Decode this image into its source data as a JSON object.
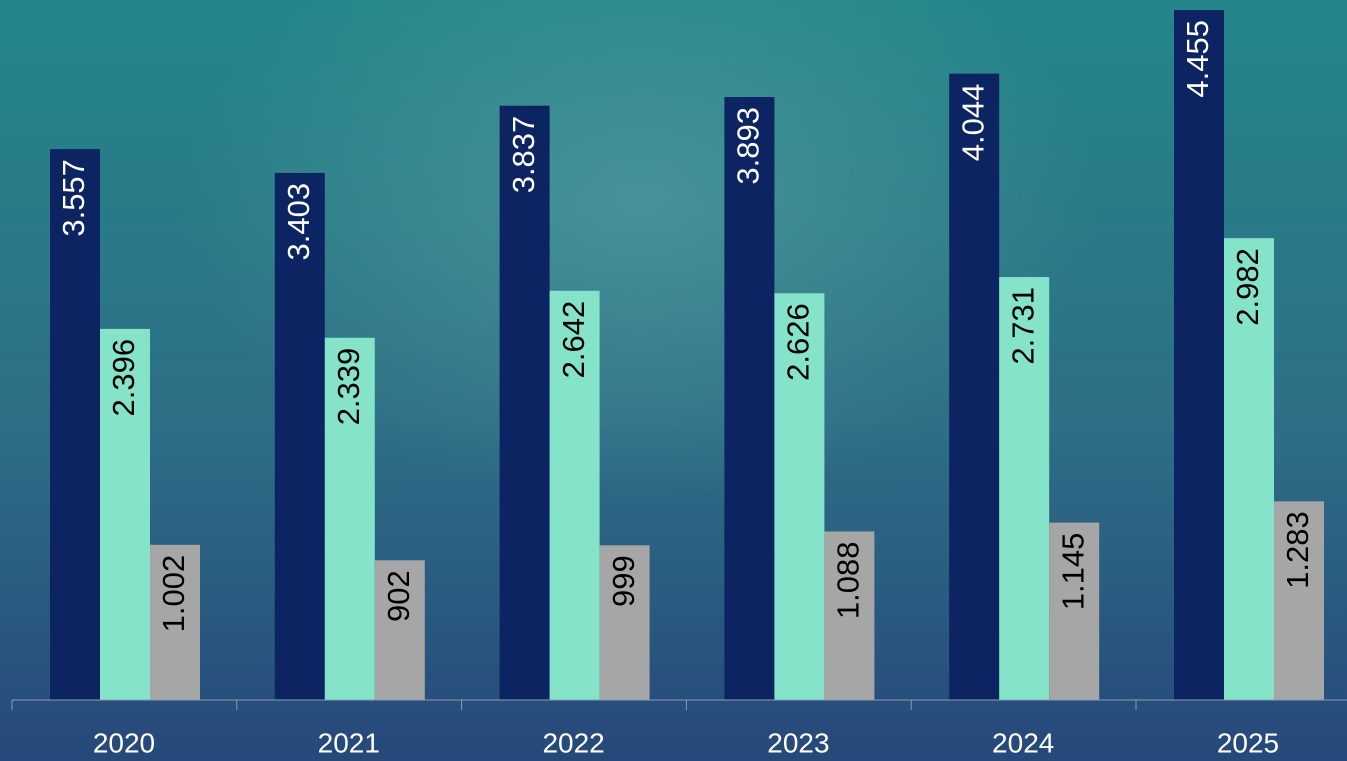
{
  "chart_data": {
    "type": "bar",
    "categories": [
      "2020",
      "2021",
      "2022",
      "2023",
      "2024",
      "2025"
    ],
    "series": [
      {
        "color": "#0c2461",
        "label_color": "#ffffff",
        "values": [
          3557,
          3403,
          3837,
          3893,
          4044,
          4455
        ],
        "value_labels": [
          "3.557",
          "3.403",
          "3.837",
          "3.893",
          "4.044",
          "4.455"
        ]
      },
      {
        "color": "#84e3c8",
        "label_color": "#000000",
        "values": [
          2396,
          2339,
          2642,
          2626,
          2731,
          2982
        ],
        "value_labels": [
          "2.396",
          "2.339",
          "2.642",
          "2.626",
          "2.731",
          "2.982"
        ]
      },
      {
        "color": "#a6a6a6",
        "label_color": "#000000",
        "values": [
          1002,
          902,
          999,
          1088,
          1145,
          1283
        ],
        "value_labels": [
          "1.002",
          "902",
          "999",
          "1.088",
          "1.145",
          "1.283"
        ]
      }
    ]
  }
}
